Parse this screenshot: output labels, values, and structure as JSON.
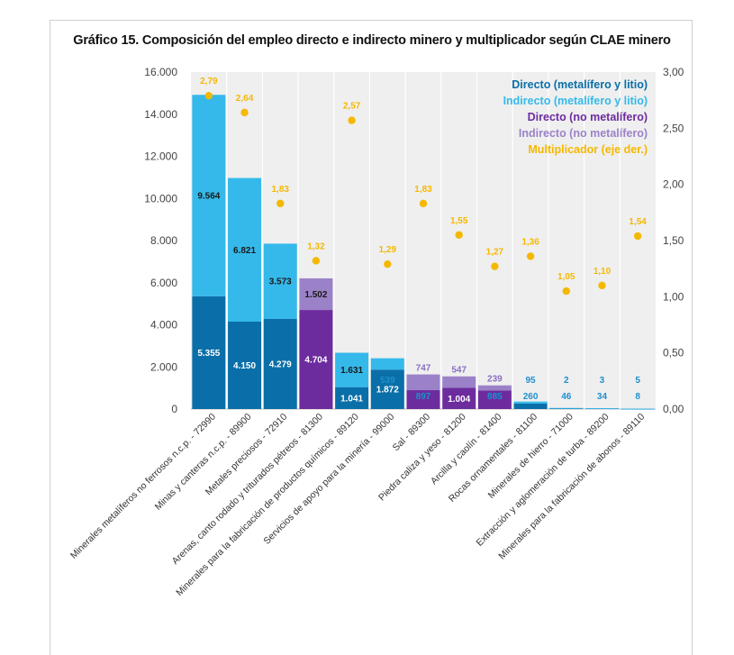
{
  "chart_data": {
    "type": "bar",
    "title": "Gráfico 15. Composición del empleo directo e indirecto minero y multiplicador según CLAE minero",
    "categories": [
      "Minerales metalíferos no ferrosos n.c.p. - 72990",
      "Minas y canteras n.c.p. - 89900",
      "Metales preciosos - 72910",
      "Arenas, canto rodado y triturados pétreos - 81300",
      "Minerales para la fabricación de productos químicos - 89120",
      "Servicios de apoyo para la minería - 99000",
      "Sal - 89300",
      "Piedra caliza y yeso - 81200",
      "Arcilla y caolín - 81400",
      "Rocas ornamentales - 81100",
      "Minerales de hierro - 71000",
      "Extracción y aglomeración de turba - 89200",
      "Minerales para la fabricación de abonos - 89110"
    ],
    "series": [
      {
        "name": "Directo (metalífero y litio)",
        "color": "#0a6fa8",
        "values": [
          5355,
          4150,
          4279,
          null,
          1041,
          1872,
          null,
          null,
          null,
          260,
          46,
          34,
          8
        ],
        "labels": [
          "5.355",
          "4.150",
          "4.279",
          null,
          "1.041",
          "1.872",
          null,
          null,
          null,
          "260",
          "46",
          "34",
          "8"
        ]
      },
      {
        "name": "Indirecto (metalífero y litio)",
        "color": "#35b9ea",
        "values": [
          9564,
          6821,
          3573,
          null,
          1631,
          539,
          null,
          null,
          null,
          95,
          2,
          3,
          5
        ],
        "labels": [
          "9.564",
          "6.821",
          "3.573",
          null,
          "1.631",
          "539",
          null,
          null,
          null,
          "95",
          "2",
          "3",
          "5"
        ]
      },
      {
        "name": "Directo (no metalífero)",
        "color": "#6d2c9e",
        "values": [
          null,
          null,
          null,
          4704,
          null,
          null,
          897,
          1004,
          885,
          null,
          null,
          null,
          null
        ],
        "labels": [
          null,
          null,
          null,
          "4.704",
          null,
          null,
          "897",
          "1.004",
          "885",
          null,
          null,
          null,
          null
        ]
      },
      {
        "name": "Indirecto (no metalífero)",
        "color": "#9b82c8",
        "values": [
          null,
          null,
          null,
          1502,
          null,
          null,
          747,
          547,
          239,
          null,
          null,
          null,
          null
        ],
        "labels": [
          null,
          null,
          null,
          "1.502",
          null,
          null,
          "747",
          "547",
          "239",
          null,
          null,
          null,
          null
        ]
      },
      {
        "name": "Multiplicador (eje der.)",
        "color": "#f5b800",
        "type": "scatter",
        "axis": "right",
        "values": [
          2.79,
          2.64,
          1.83,
          1.32,
          2.57,
          1.29,
          1.83,
          1.55,
          1.27,
          1.36,
          1.05,
          1.1,
          1.54
        ],
        "labels": [
          "2,79",
          "2,64",
          "1,83",
          "1,32",
          "2,57",
          "1,29",
          "1,83",
          "1,55",
          "1,27",
          "1,36",
          "1,05",
          "1,10",
          "1,54"
        ]
      }
    ],
    "ylim": [
      0,
      16000
    ],
    "y_ticks": [
      "0",
      "2.000",
      "4.000",
      "6.000",
      "8.000",
      "10.000",
      "12.000",
      "14.000",
      "16.000"
    ],
    "y2lim": [
      0,
      3
    ],
    "y2_ticks": [
      "0,00",
      "0,50",
      "1,00",
      "1,50",
      "2,00",
      "2,50",
      "3,00"
    ],
    "legend_position": "top-right",
    "grid": "vertical column bands",
    "colors": {
      "background_panel": "#efefef",
      "label_dark": "#1a1a1a",
      "label_light": "#ffffff"
    }
  }
}
